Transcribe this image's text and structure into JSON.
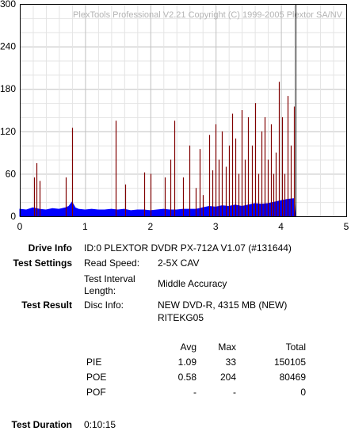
{
  "watermark": "PlexTools Professional V2.21 Copyright (C) 1999-2005 Plextor SA/NV",
  "chart_data": {
    "type": "bar",
    "title": "",
    "xlabel": "",
    "ylabel": "",
    "xlim": [
      0,
      5
    ],
    "ylim": [
      0,
      300
    ],
    "x_ticks": [
      "0",
      "1",
      "2",
      "3",
      "4",
      "5"
    ],
    "y_ticks": [
      "0",
      "60",
      "120",
      "180",
      "240",
      "300"
    ],
    "grid": true,
    "end_marker_x": 4.22,
    "series": [
      {
        "color": "#0000ff",
        "style": "area",
        "points": [
          [
            0.0,
            10
          ],
          [
            0.1,
            9
          ],
          [
            0.2,
            12
          ],
          [
            0.3,
            10
          ],
          [
            0.4,
            9
          ],
          [
            0.5,
            11
          ],
          [
            0.6,
            10
          ],
          [
            0.7,
            12
          ],
          [
            0.75,
            14
          ],
          [
            0.8,
            20
          ],
          [
            0.85,
            12
          ],
          [
            0.9,
            10
          ],
          [
            1.0,
            9
          ],
          [
            1.1,
            10
          ],
          [
            1.2,
            9
          ],
          [
            1.3,
            9
          ],
          [
            1.4,
            10
          ],
          [
            1.5,
            9
          ],
          [
            1.6,
            10
          ],
          [
            1.7,
            8
          ],
          [
            1.8,
            9
          ],
          [
            1.9,
            9
          ],
          [
            2.0,
            8
          ],
          [
            2.1,
            9
          ],
          [
            2.2,
            10
          ],
          [
            2.3,
            9
          ],
          [
            2.4,
            9
          ],
          [
            2.5,
            10
          ],
          [
            2.6,
            10
          ],
          [
            2.7,
            10
          ],
          [
            2.8,
            12
          ],
          [
            2.9,
            14
          ],
          [
            3.0,
            13
          ],
          [
            3.1,
            15
          ],
          [
            3.2,
            14
          ],
          [
            3.3,
            16
          ],
          [
            3.4,
            14
          ],
          [
            3.5,
            16
          ],
          [
            3.6,
            18
          ],
          [
            3.7,
            17
          ],
          [
            3.8,
            18
          ],
          [
            3.9,
            20
          ],
          [
            4.0,
            22
          ],
          [
            4.1,
            24
          ],
          [
            4.2,
            25
          ],
          [
            4.22,
            0
          ]
        ]
      },
      {
        "color": "#800000",
        "style": "spikes",
        "points": [
          [
            0.22,
            55
          ],
          [
            0.25,
            75
          ],
          [
            0.3,
            50
          ],
          [
            0.7,
            55
          ],
          [
            0.8,
            125
          ],
          [
            1.47,
            135
          ],
          [
            1.62,
            45
          ],
          [
            1.9,
            62
          ],
          [
            2.0,
            60
          ],
          [
            2.22,
            55
          ],
          [
            2.3,
            80
          ],
          [
            2.37,
            135
          ],
          [
            2.5,
            55
          ],
          [
            2.6,
            100
          ],
          [
            2.7,
            40
          ],
          [
            2.75,
            95
          ],
          [
            2.8,
            30
          ],
          [
            2.9,
            115
          ],
          [
            2.95,
            65
          ],
          [
            3.0,
            130
          ],
          [
            3.05,
            80
          ],
          [
            3.1,
            120
          ],
          [
            3.15,
            70
          ],
          [
            3.2,
            100
          ],
          [
            3.25,
            145
          ],
          [
            3.3,
            110
          ],
          [
            3.35,
            60
          ],
          [
            3.4,
            150
          ],
          [
            3.45,
            80
          ],
          [
            3.5,
            140
          ],
          [
            3.55,
            100
          ],
          [
            3.6,
            160
          ],
          [
            3.65,
            60
          ],
          [
            3.7,
            120
          ],
          [
            3.75,
            140
          ],
          [
            3.8,
            80
          ],
          [
            3.85,
            130
          ],
          [
            3.88,
            60
          ],
          [
            3.92,
            90
          ],
          [
            3.97,
            190
          ],
          [
            4.02,
            140
          ],
          [
            4.05,
            60
          ],
          [
            4.1,
            170
          ],
          [
            4.15,
            100
          ],
          [
            4.2,
            155
          ]
        ]
      }
    ]
  },
  "info": {
    "drive_info_label": "Drive Info",
    "drive_info_value": "ID:0 PLEXTOR DVDR PX-712A V1.07 (#131644)",
    "test_settings_label": "Test Settings",
    "read_speed_label": "Read Speed:",
    "read_speed_value": "2-5X CAV",
    "interval_label_1": "Test Interval",
    "interval_label_2": "Length:",
    "interval_value": "Middle Accuracy",
    "test_result_label": "Test Result",
    "disc_info_label": "Disc Info:",
    "disc_info_value_1": "NEW DVD-R, 4315 MB (NEW)",
    "disc_info_value_2": "RITEKG05",
    "test_duration_label": "Test Duration",
    "test_duration_value": "0:10:15"
  },
  "results": {
    "headers": {
      "avg": "Avg",
      "max": "Max",
      "total": "Total"
    },
    "rows": [
      {
        "name": "PIE",
        "avg": "1.09",
        "max": "33",
        "total": "150105"
      },
      {
        "name": "POE",
        "avg": "0.58",
        "max": "204",
        "total": "80469"
      },
      {
        "name": "POF",
        "avg": "-",
        "max": "-",
        "total": "0"
      }
    ]
  }
}
